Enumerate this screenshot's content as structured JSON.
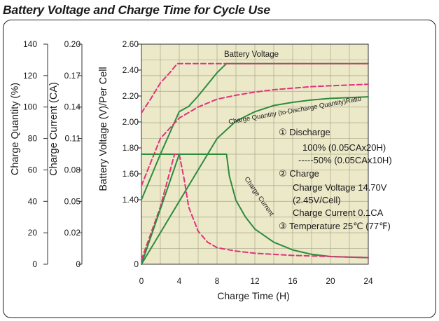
{
  "title": "Battery Voltage and Charge Time for Cycle Use",
  "chart_data": {
    "type": "line",
    "xlabel": "Charge Time (H)",
    "xlim": [
      0,
      24
    ],
    "x_ticks": [
      "0",
      "4",
      "8",
      "12",
      "16",
      "20",
      "24"
    ],
    "y_axes": [
      {
        "label": "Charge Quantity (%)",
        "lim": [
          0,
          140
        ],
        "ticks": [
          "0",
          "20",
          "40",
          "60",
          "80",
          "100",
          "120",
          "140"
        ]
      },
      {
        "label": "Charge Current (CA)",
        "lim": [
          0,
          0.2
        ],
        "ticks": [
          "0",
          "0.02",
          "0.05",
          "0.08",
          "0.11",
          "0.14",
          "0.17",
          "0.20"
        ]
      },
      {
        "label": "Battery Voltage (V)/Per Cell",
        "lim": [
          1.4,
          2.6
        ],
        "zero_label": "0",
        "ticks": [
          "1.40",
          "1.60",
          "1.80",
          "2.00",
          "2.20",
          "2.40",
          "2.60"
        ]
      }
    ],
    "grid": true,
    "background": "#ece9c9",
    "colors": {
      "discharge_100": "#2e8b3e",
      "discharge_50": "#e0337a"
    },
    "series": [
      {
        "name": "Battery Voltage",
        "group": "100%",
        "axis": "voltage",
        "x": [
          0,
          2,
          4,
          5,
          6,
          8,
          9,
          24
        ],
        "y": [
          1.4,
          1.75,
          2.08,
          2.12,
          2.2,
          2.38,
          2.45,
          2.45
        ]
      },
      {
        "group": "50%",
        "axis": "voltage",
        "x": [
          0,
          1,
          2,
          3,
          3.8,
          4,
          24
        ],
        "y": [
          2.07,
          2.18,
          2.3,
          2.38,
          2.45,
          2.45,
          2.45
        ]
      },
      {
        "name": "Charge Quantity (to-Discharge Quantity)Ratio",
        "group": "100%",
        "axis": "quantity",
        "x": [
          0,
          8,
          10,
          12,
          14,
          16,
          18,
          20,
          22,
          24
        ],
        "y": [
          0,
          80,
          91,
          97,
          101,
          103,
          104.5,
          105.5,
          106,
          106.5
        ]
      },
      {
        "group": "50%",
        "axis": "quantity",
        "x": [
          0,
          2,
          4,
          6,
          8,
          10,
          12,
          14,
          16,
          18,
          20,
          22,
          24
        ],
        "y": [
          50,
          80,
          93,
          100,
          105,
          107.5,
          109.5,
          111,
          112,
          113,
          113.5,
          114,
          114.5
        ]
      },
      {
        "name": "Charge Current",
        "group": "100%",
        "axis": "current",
        "x": [
          0,
          9,
          9.3,
          10,
          11,
          12,
          14,
          16,
          18,
          20,
          24
        ],
        "y": [
          0.1,
          0.1,
          0.08,
          0.058,
          0.043,
          0.032,
          0.02,
          0.013,
          0.009,
          0.007,
          0.006
        ]
      },
      {
        "group": "50%",
        "axis": "current",
        "x": [
          0,
          2,
          3.5,
          4,
          4.5,
          5,
          6,
          7,
          8,
          10,
          12,
          14,
          16,
          20,
          24
        ],
        "y": [
          0.004,
          0.052,
          0.1,
          0.1,
          0.078,
          0.052,
          0.03,
          0.02,
          0.015,
          0.012,
          0.01,
          0.009,
          0.008,
          0.007,
          0.006
        ]
      },
      {
        "group": "100%",
        "axis": "current",
        "x": [
          0,
          4
        ],
        "y": [
          0,
          0.1
        ]
      }
    ],
    "annotations": {
      "battery_voltage": "Battery Voltage",
      "charge_quantity": "Charge Quantity (to-Discharge Quantity)Ratio",
      "charge_current": "Charge Current",
      "legend_lines": [
        "① Discharge",
        "100% (0.05CAx20H)",
        "-----50% (0.05CAx10H)",
        "② Charge",
        "Charge Voltage 14.70V",
        "(2.45V/Cell)",
        "Charge Current 0.1CA",
        "③ Temperature 25℃ (77℉)"
      ]
    }
  }
}
